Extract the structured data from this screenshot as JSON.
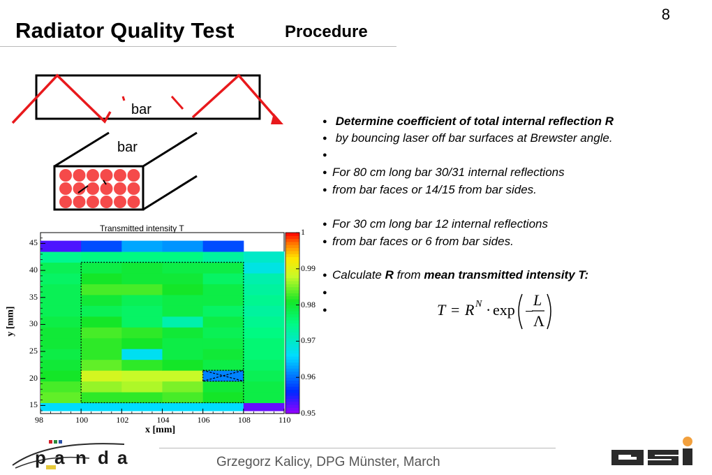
{
  "page_number": "8",
  "title": "Radiator Quality Test",
  "subtitle": "Procedure",
  "diagram": {
    "side_label": "bar",
    "front_label": "bar",
    "laser_color": "#e8191c",
    "spot_color": "#f54a4a"
  },
  "bullets": [
    {
      "text": " Determine coefficient of total internal reflection R",
      "bold": true
    },
    {
      "text": " by bouncing laser off bar surfaces at Brewster angle.",
      "bold": false
    },
    {
      "text": "",
      "bold": false
    },
    {
      "text": "For 80 cm long bar 30/31 internal reflections",
      "bold": false
    },
    {
      "text": "from bar faces or 14/15 from bar sides.",
      "bold": false
    },
    {
      "text": "For 30 cm long bar 12 internal reflections",
      "bold": false
    },
    {
      "text": "from bar faces or 6 from bar sides.",
      "bold": false
    },
    {
      "text": "",
      "bold": false
    },
    {
      "text": "",
      "bold": false
    }
  ],
  "calc_bullet": {
    "pre": "Calculate ",
    "r": "R",
    "mid": " from ",
    "bold": "mean transmitted intensity T:"
  },
  "formula": {
    "lhs": "T",
    "eq": "=",
    "base": "R",
    "exp": "N",
    "dot": "·",
    "fn": "exp",
    "minus": "−",
    "num": "L",
    "den": "Λ"
  },
  "footer": "Grzegorz Kalicy, DPG Münster, March",
  "logos": {
    "left": "panda-logo",
    "right": "gsi-logo"
  },
  "chart_data": {
    "type": "heatmap",
    "title": "Transmitted intensity T",
    "xlabel": "x [mm]",
    "ylabel": "y [mm]",
    "xlim": [
      98,
      110
    ],
    "ylim": [
      13.5,
      47
    ],
    "x_ticks": [
      "98",
      "100",
      "102",
      "104",
      "106",
      "108",
      "110"
    ],
    "y_ticks": [
      "15",
      "20",
      "25",
      "30",
      "35",
      "40",
      "45"
    ],
    "color_scale": {
      "min": 0.95,
      "max": 1.0,
      "ticks": [
        "1",
        "0.99",
        "0.98",
        "0.97",
        "0.96",
        "0.95"
      ]
    },
    "x_bins": [
      98,
      100,
      102,
      104,
      106,
      108,
      110
    ],
    "y_bins": [
      14,
      15.5,
      17.5,
      19.5,
      21.5,
      23.5,
      25.5,
      27.5,
      29.5,
      31.5,
      33.5,
      35.5,
      37.5,
      39.5,
      41.5,
      43.5,
      45.5
    ],
    "values": [
      [
        0.966,
        0.966,
        0.966,
        0.966,
        0.966,
        0.952
      ],
      [
        0.984,
        0.982,
        0.982,
        0.983,
        0.981,
        0.979
      ],
      [
        0.983,
        0.986,
        0.987,
        0.985,
        0.98,
        0.979
      ],
      [
        0.981,
        0.989,
        0.988,
        0.988,
        0.961,
        0.978
      ],
      [
        0.98,
        0.984,
        0.982,
        0.981,
        0.979,
        0.977
      ],
      [
        0.979,
        0.982,
        0.967,
        0.979,
        0.98,
        0.976
      ],
      [
        0.98,
        0.982,
        0.981,
        0.979,
        0.979,
        0.976
      ],
      [
        0.98,
        0.983,
        0.982,
        0.98,
        0.978,
        0.975
      ],
      [
        0.979,
        0.981,
        0.977,
        0.972,
        0.979,
        0.974
      ],
      [
        0.978,
        0.978,
        0.977,
        0.979,
        0.977,
        0.973
      ],
      [
        0.978,
        0.98,
        0.978,
        0.979,
        0.979,
        0.974
      ],
      [
        0.978,
        0.983,
        0.983,
        0.981,
        0.979,
        0.973
      ],
      [
        0.977,
        0.981,
        0.98,
        0.98,
        0.977,
        0.972
      ],
      [
        0.978,
        0.979,
        0.98,
        0.979,
        0.979,
        0.968
      ],
      [
        0.974,
        0.975,
        0.975,
        0.975,
        0.973,
        0.97
      ],
      [
        0.953,
        0.958,
        0.963,
        0.962,
        0.958,
        null
      ]
    ],
    "annotations": [
      {
        "type": "dashed-rectangle",
        "x": [
          100,
          108
        ],
        "y": [
          15.5,
          41.5
        ]
      },
      {
        "type": "dashed-cross",
        "x": [
          106,
          108
        ],
        "y": [
          19.5,
          21.5
        ]
      }
    ]
  }
}
